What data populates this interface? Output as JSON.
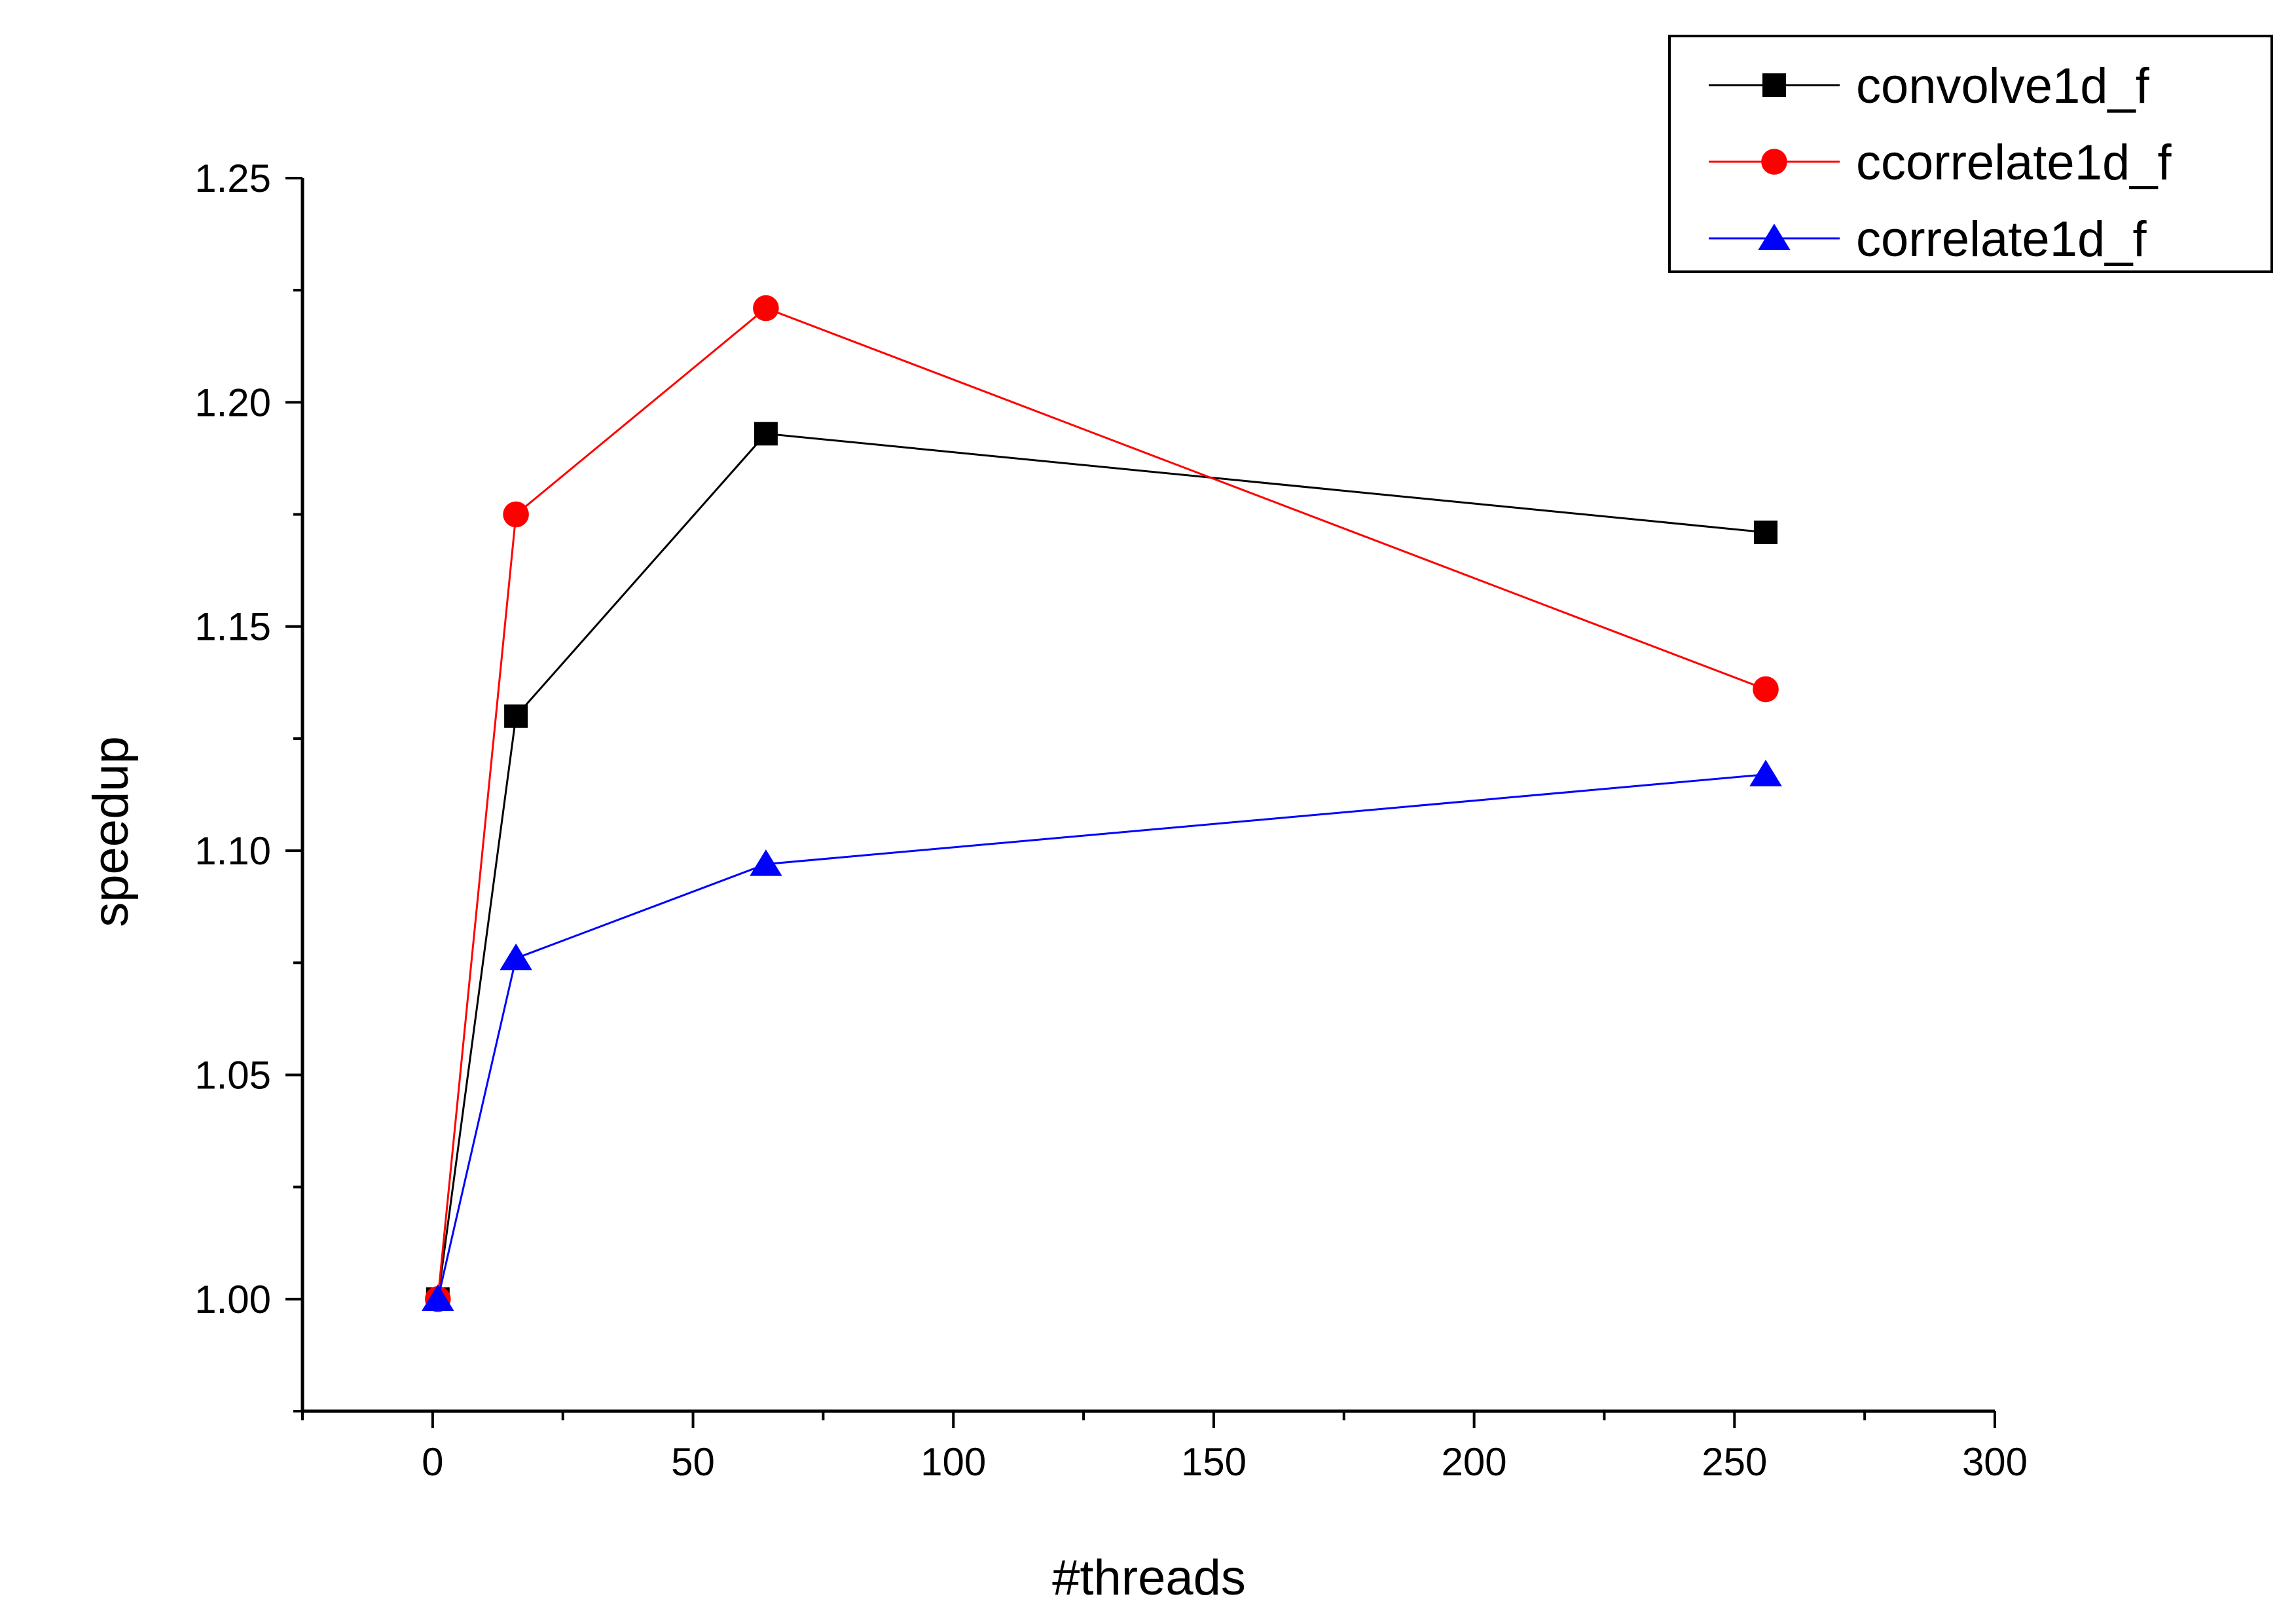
{
  "chart_data": {
    "type": "line",
    "title": "",
    "xlabel": "#threads",
    "ylabel": "speedup",
    "xlim": [
      -25,
      300
    ],
    "ylim": [
      0.975,
      1.25
    ],
    "x_ticks": [
      0,
      50,
      100,
      150,
      200,
      250,
      300
    ],
    "x_tick_labels": [
      "0",
      "50",
      "100",
      "150",
      "200",
      "250",
      "300"
    ],
    "y_ticks": [
      1.0,
      1.05,
      1.1,
      1.15,
      1.2,
      1.25
    ],
    "y_tick_labels": [
      "1.00",
      "1.05",
      "1.10",
      "1.15",
      "1.20",
      "1.25"
    ],
    "grid": false,
    "legend_position": "top-right",
    "x": [
      1,
      16,
      64,
      256
    ],
    "series": [
      {
        "name": "convolve1d_f",
        "color": "#000000",
        "marker": "square",
        "values": [
          1.0,
          1.13,
          1.193,
          1.171
        ]
      },
      {
        "name": "ccorrelate1d_f",
        "color": "#ff0000",
        "marker": "circle",
        "values": [
          1.0,
          1.175,
          1.221,
          1.136
        ]
      },
      {
        "name": "correlate1d_f",
        "color": "#0000ff",
        "marker": "triangle",
        "values": [
          1.0,
          1.076,
          1.097,
          1.117
        ]
      }
    ]
  }
}
